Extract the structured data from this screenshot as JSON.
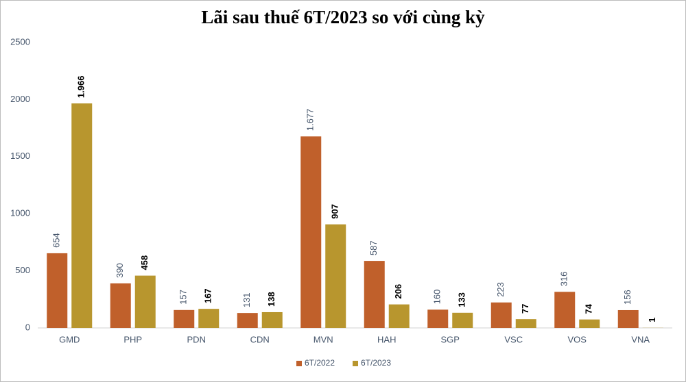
{
  "chart_data": {
    "type": "bar",
    "title": "Lãi sau thuế 6T/2023 so với cùng kỳ",
    "categories": [
      "GMD",
      "PHP",
      "PDN",
      "CDN",
      "MVN",
      "HAH",
      "SGP",
      "VSC",
      "VOS",
      "VNA"
    ],
    "series": [
      {
        "name": "6T/2022",
        "color": "#c0602b",
        "label_color": "#44546a",
        "values": [
          654,
          390,
          157,
          131,
          1677,
          587,
          160,
          223,
          316,
          156
        ],
        "value_labels": [
          "654",
          "390",
          "157",
          "131",
          "1.677",
          "587",
          "160",
          "223",
          "316",
          "156"
        ]
      },
      {
        "name": "6T/2023",
        "color": "#b8962e",
        "label_color": "#000000",
        "values": [
          1966,
          458,
          167,
          138,
          907,
          206,
          133,
          77,
          74,
          1
        ],
        "value_labels": [
          "1.966",
          "458",
          "167",
          "138",
          "907",
          "206",
          "133",
          "77",
          "74",
          "1"
        ]
      }
    ],
    "ylim": [
      0,
      2500
    ],
    "yticks": [
      0,
      500,
      1000,
      1500,
      2000,
      2500
    ],
    "grid": false,
    "legend": "bottom"
  }
}
